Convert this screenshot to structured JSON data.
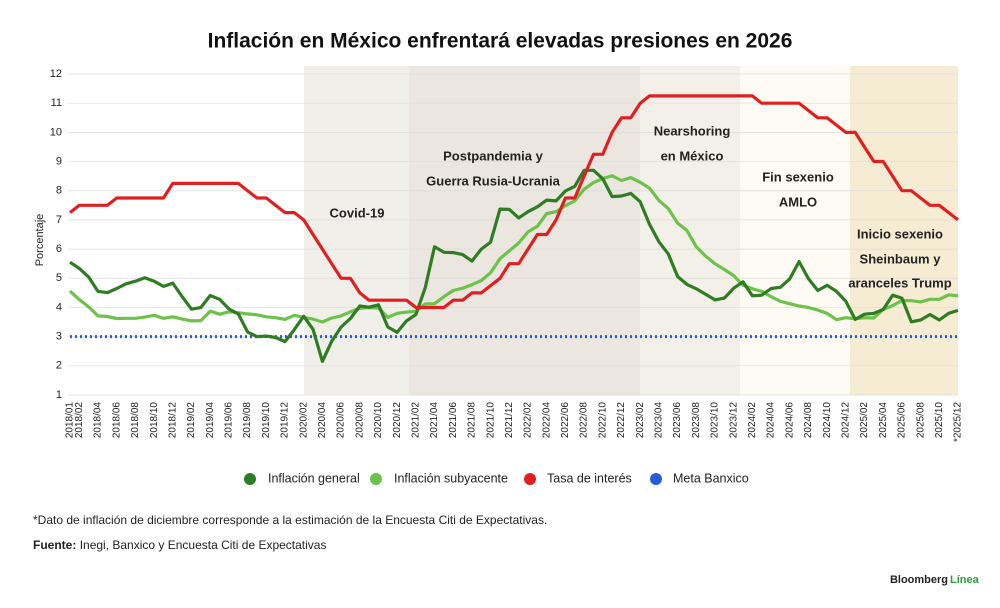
{
  "chart_data": {
    "type": "line",
    "title": "Inflación en México enfrentará elevadas presiones en 2026",
    "y_label": "Porcentaje",
    "categories": [
      "2018/01",
      "2018/02",
      null,
      "2018/04",
      null,
      "2018/06",
      null,
      "2018/08",
      null,
      "2018/10",
      null,
      "2018/12",
      null,
      "2019/02",
      null,
      "2019/04",
      null,
      "2019/06",
      null,
      "2019/08",
      null,
      "2019/10",
      null,
      "2019/12",
      null,
      "2020/02",
      null,
      "2020/04",
      null,
      "2020/06",
      null,
      "2020/08",
      null,
      "2020/10",
      null,
      "2020/12",
      null,
      "2021/02",
      null,
      "2021/04",
      null,
      "2021/06",
      null,
      "2021/08",
      null,
      "2021/10",
      null,
      "2021/12",
      null,
      "2022/02",
      null,
      "2022/04",
      null,
      "2022/06",
      null,
      "2022/08",
      null,
      "2022/10",
      null,
      "2022/12",
      null,
      "2023/02",
      null,
      "2023/04",
      null,
      "2023/06",
      null,
      "2023/08",
      null,
      "2023/10",
      null,
      "2023/12",
      null,
      "2024/02",
      null,
      "2024/04",
      null,
      "2024/06",
      null,
      "2024/08",
      null,
      "2024/10",
      null,
      "2024/12",
      null,
      "2025/02",
      null,
      "2025/04",
      null,
      "2025/06",
      null,
      "2025/08",
      null,
      "2025/10",
      null,
      "*2025/12"
    ],
    "series": [
      {
        "name": "Inflación general",
        "color": "#2e7d22",
        "values": [
          5.55,
          5.34,
          5.04,
          4.55,
          4.51,
          4.65,
          4.81,
          4.9,
          5.02,
          4.9,
          4.72,
          4.83,
          4.37,
          3.94,
          4.0,
          4.41,
          4.28,
          3.95,
          3.78,
          3.16,
          3.0,
          3.02,
          2.97,
          2.83,
          3.24,
          3.7,
          3.25,
          2.15,
          2.84,
          3.33,
          3.62,
          4.05,
          4.01,
          4.09,
          3.33,
          3.15,
          3.54,
          3.76,
          4.67,
          6.08,
          5.89,
          5.88,
          5.81,
          5.59,
          6.0,
          6.24,
          7.37,
          7.36,
          7.07,
          7.28,
          7.45,
          7.68,
          7.65,
          7.99,
          8.15,
          8.7,
          8.7,
          8.41,
          7.8,
          7.82,
          7.91,
          7.62,
          6.85,
          6.25,
          5.84,
          5.06,
          4.79,
          4.64,
          4.45,
          4.26,
          4.32,
          4.66,
          4.88,
          4.4,
          4.42,
          4.65,
          4.69,
          4.98,
          5.57,
          4.99,
          4.58,
          4.76,
          4.55,
          4.21,
          3.59,
          3.77,
          3.8,
          3.93,
          4.42,
          4.32,
          3.51,
          3.57,
          3.76,
          3.57,
          3.8,
          3.9
        ]
      },
      {
        "name": "Inflación subyacente",
        "color": "#6cc24a",
        "values": [
          4.56,
          4.27,
          4.02,
          3.71,
          3.69,
          3.62,
          3.63,
          3.63,
          3.67,
          3.73,
          3.63,
          3.68,
          3.6,
          3.54,
          3.55,
          3.87,
          3.77,
          3.85,
          3.82,
          3.78,
          3.75,
          3.68,
          3.65,
          3.59,
          3.73,
          3.66,
          3.6,
          3.5,
          3.64,
          3.71,
          3.85,
          3.97,
          3.99,
          3.98,
          3.66,
          3.8,
          3.84,
          3.87,
          4.12,
          4.13,
          4.37,
          4.58,
          4.66,
          4.78,
          4.92,
          5.19,
          5.67,
          5.94,
          6.21,
          6.59,
          6.78,
          7.22,
          7.28,
          7.49,
          7.65,
          8.05,
          8.28,
          8.42,
          8.51,
          8.35,
          8.45,
          8.29,
          8.09,
          7.67,
          7.39,
          6.89,
          6.64,
          6.08,
          5.76,
          5.5,
          5.3,
          5.09,
          4.76,
          4.64,
          4.55,
          4.37,
          4.21,
          4.13,
          4.05,
          4.0,
          3.91,
          3.8,
          3.58,
          3.65,
          3.61,
          3.65,
          3.64,
          3.93,
          4.06,
          4.24,
          4.23,
          4.19,
          4.28,
          4.28,
          4.43,
          4.4
        ]
      },
      {
        "name": "Tasa de interés",
        "color": "#e02020",
        "values": [
          7.25,
          7.5,
          7.5,
          7.5,
          7.5,
          7.75,
          7.75,
          7.75,
          7.75,
          7.75,
          7.75,
          8.25,
          8.25,
          8.25,
          8.25,
          8.25,
          8.25,
          8.25,
          8.25,
          8.0,
          7.75,
          7.75,
          7.5,
          7.25,
          7.25,
          7.0,
          6.5,
          6.0,
          5.5,
          5.0,
          5.0,
          4.5,
          4.25,
          4.25,
          4.25,
          4.25,
          4.25,
          4.0,
          4.0,
          4.0,
          4.0,
          4.25,
          4.25,
          4.5,
          4.5,
          4.75,
          5.0,
          5.5,
          5.5,
          6.0,
          6.5,
          6.5,
          7.0,
          7.75,
          7.75,
          8.5,
          9.25,
          9.25,
          10.0,
          10.5,
          10.5,
          11.0,
          11.25,
          11.25,
          11.25,
          11.25,
          11.25,
          11.25,
          11.25,
          11.25,
          11.25,
          11.25,
          11.25,
          11.25,
          11.0,
          11.0,
          11.0,
          11.0,
          11.0,
          10.75,
          10.5,
          10.5,
          10.25,
          10.0,
          10.0,
          9.5,
          9.0,
          9.0,
          8.5,
          8.0,
          8.0,
          7.75,
          7.5,
          7.5,
          7.25,
          7.0
        ]
      },
      {
        "name": "Meta Banxico",
        "color": "#2a5bd7",
        "dashed": true,
        "values": [
          3,
          3,
          3,
          3,
          3,
          3,
          3,
          3,
          3,
          3,
          3,
          3,
          3,
          3,
          3,
          3,
          3,
          3,
          3,
          3,
          3,
          3,
          3,
          3,
          3,
          3,
          3,
          3,
          3,
          3,
          3,
          3,
          3,
          3,
          3,
          3,
          3,
          3,
          3,
          3,
          3,
          3,
          3,
          3,
          3,
          3,
          3,
          3,
          3,
          3,
          3,
          3,
          3,
          3,
          3,
          3,
          3,
          3,
          3,
          3,
          3,
          3,
          3,
          3,
          3,
          3,
          3,
          3,
          3,
          3,
          3,
          3,
          3,
          3,
          3,
          3,
          3,
          3,
          3,
          3,
          3,
          3,
          3,
          3,
          3,
          3,
          3,
          3,
          3,
          3,
          3,
          3,
          3,
          3,
          3,
          3
        ]
      }
    ],
    "ylim": [
      1,
      12
    ],
    "yticks": [
      1,
      2,
      3,
      4,
      5,
      6,
      7,
      8,
      9,
      10,
      11,
      12
    ],
    "grid": true,
    "annotations": [
      {
        "lines": [
          "Covid-19"
        ]
      },
      {
        "lines": [
          "Postpandemia y",
          "Guerra Rusia-Ucrania"
        ]
      },
      {
        "lines": [
          "Nearshoring",
          "en México"
        ]
      },
      {
        "lines": [
          "Fin sexenio",
          "AMLO"
        ]
      },
      {
        "lines": [
          "Inicio sexenio",
          "Sheinbaum y",
          "aranceles Trump"
        ]
      }
    ],
    "note": "*Dato de inflación de diciembre corresponde a la estimación de la Encuesta Citi de Expectativas.",
    "source_label": "Fuente:",
    "source": "Inegi, Banxico y Encuesta Citi de Expectativas",
    "brand": "Bloomberg",
    "brand_suffix": "Línea"
  }
}
